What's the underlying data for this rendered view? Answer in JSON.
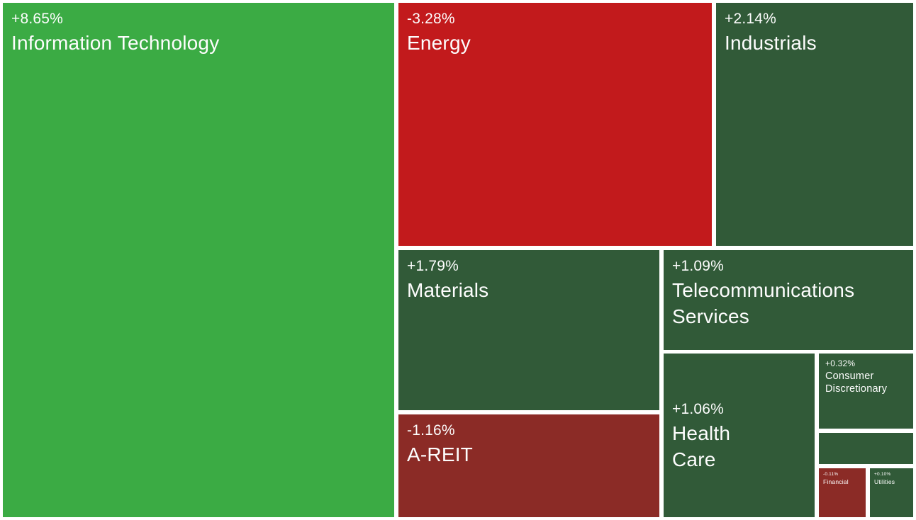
{
  "chart_data": {
    "type": "heatmap",
    "variant": "treemap",
    "title": "",
    "legend": "none",
    "value_semantics": "sector daily percentage change; green = positive, red = negative; brighter color = larger magnitude; tile area = sector weight",
    "colors": {
      "positive_strong": "#3bab44",
      "positive": "#315a38",
      "negative_strong": "#c21a1c",
      "negative": "#8b2b26",
      "gap_background": "#ffffff",
      "label_text": "#fdfdfd"
    },
    "tiles": [
      {
        "name": "Information Technology",
        "change_label": "+8.65%",
        "change_pct": 8.65,
        "color": "#3bab44"
      },
      {
        "name": "Energy",
        "change_label": "-3.28%",
        "change_pct": -3.28,
        "color": "#c21a1c"
      },
      {
        "name": "Industrials",
        "change_label": "+2.14%",
        "change_pct": 2.14,
        "color": "#315a38"
      },
      {
        "name": "Materials",
        "change_label": "+1.79%",
        "change_pct": 1.79,
        "color": "#315a38"
      },
      {
        "name": "Telecommunications Services",
        "change_label": "+1.09%",
        "change_pct": 1.09,
        "color": "#315a38"
      },
      {
        "name": "A-REIT",
        "change_label": "-1.16%",
        "change_pct": -1.16,
        "color": "#8b2b26"
      },
      {
        "name": "Health Care",
        "change_label": "+1.06%",
        "change_pct": 1.06,
        "color": "#315a38"
      },
      {
        "name": "Consumer Discretionary",
        "change_label": "+0.32%",
        "change_pct": 0.32,
        "color": "#315a38"
      },
      {
        "name": "",
        "change_label": "",
        "change_pct": null,
        "color": "#315a38"
      },
      {
        "name": "Financial",
        "change_label": "-0.11%",
        "change_pct": -0.11,
        "color": "#8b2b26"
      },
      {
        "name": "Utilities",
        "change_label": "+0.10%",
        "change_pct": 0.1,
        "color": "#315a38"
      }
    ]
  }
}
